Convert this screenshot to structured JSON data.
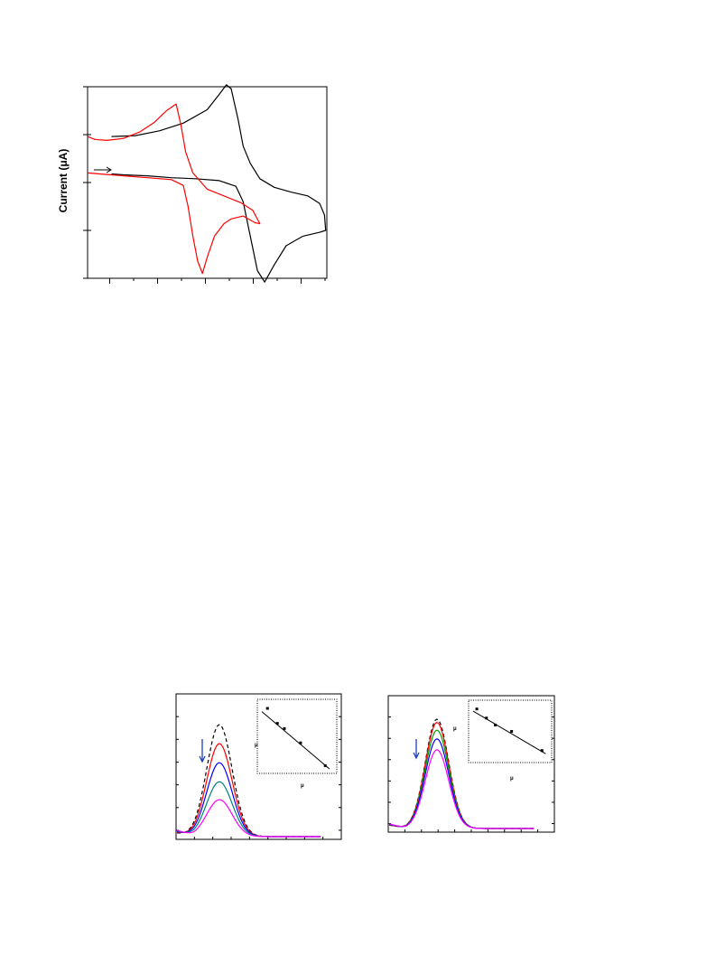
{
  "chart_data": [
    {
      "type": "line",
      "ylabel": "Current (μA)",
      "xlim": [
        0,
        100
      ],
      "ylim": [
        -10,
        10
      ],
      "annotation_arrow_direction": "right",
      "series": [
        {
          "color": "#000000",
          "points": [
            [
              10,
              4.8
            ],
            [
              20,
              4.9
            ],
            [
              30,
              5.4
            ],
            [
              40,
              6.2
            ],
            [
              50,
              7.6
            ],
            [
              55,
              9.2
            ],
            [
              58,
              10.2
            ],
            [
              60,
              9.8
            ],
            [
              63,
              6.5
            ],
            [
              65,
              3.8
            ],
            [
              68,
              2.0
            ],
            [
              72,
              0.4
            ],
            [
              78,
              -0.5
            ],
            [
              85,
              -1.0
            ],
            [
              92,
              -1.4
            ],
            [
              97,
              -2.2
            ],
            [
              99,
              -3.4
            ],
            [
              99.5,
              -5.0
            ],
            [
              97,
              -5.2
            ],
            [
              90,
              -5.6
            ],
            [
              83,
              -6.6
            ],
            [
              78,
              -8.6
            ],
            [
              74,
              -10.4
            ],
            [
              71,
              -9.2
            ],
            [
              68,
              -5.6
            ],
            [
              65,
              -2.0
            ],
            [
              62,
              -0.4
            ],
            [
              55,
              0.2
            ],
            [
              45,
              0.4
            ],
            [
              35,
              0.5
            ],
            [
              25,
              0.7
            ],
            [
              15,
              0.8
            ],
            [
              10,
              0.9
            ]
          ]
        },
        {
          "color": "#ff0000",
          "points": [
            [
              0,
              4.8
            ],
            [
              3,
              4.5
            ],
            [
              8,
              4.4
            ],
            [
              15,
              4.6
            ],
            [
              22,
              5.3
            ],
            [
              28,
              6.3
            ],
            [
              33,
              7.5
            ],
            [
              37,
              8.2
            ],
            [
              39,
              6.0
            ],
            [
              41,
              3.2
            ],
            [
              44,
              1.0
            ],
            [
              50,
              -0.7
            ],
            [
              57,
              -1.4
            ],
            [
              64,
              -2.1
            ],
            [
              69,
              -2.9
            ],
            [
              72,
              -4.3
            ],
            [
              70,
              -4.2
            ],
            [
              65,
              -3.5
            ],
            [
              60,
              -3.8
            ],
            [
              57,
              -4.3
            ],
            [
              53,
              -5.6
            ],
            [
              50,
              -7.8
            ],
            [
              48,
              -9.5
            ],
            [
              46,
              -8.2
            ],
            [
              44,
              -5.6
            ],
            [
              42,
              -2.5
            ],
            [
              40,
              -0.3
            ],
            [
              35,
              0.3
            ],
            [
              25,
              0.5
            ],
            [
              15,
              0.7
            ],
            [
              5,
              0.9
            ],
            [
              0,
              1.0
            ]
          ]
        }
      ]
    },
    {
      "type": "line",
      "annotation_arrow_direction": "down",
      "series": [
        {
          "color": "#000000",
          "style": "dashed",
          "peak": 1.0
        },
        {
          "color": "#ff0000",
          "style": "solid",
          "peak": 0.83
        },
        {
          "color": "#0000ff",
          "style": "solid",
          "peak": 0.66
        },
        {
          "color": "#008080",
          "style": "solid",
          "peak": 0.49
        },
        {
          "color": "#ff00ff",
          "style": "solid",
          "peak": 0.33
        }
      ],
      "inset": {
        "type": "scatter",
        "points": [
          [
            0.08,
            0.93
          ],
          [
            0.22,
            0.7
          ],
          [
            0.32,
            0.62
          ],
          [
            0.55,
            0.4
          ],
          [
            0.9,
            0.05
          ]
        ],
        "fit_line": [
          [
            0.0,
            0.88
          ],
          [
            0.96,
            0.0
          ]
        ],
        "label_mu_1": "μ",
        "label_mu_2": "μ"
      }
    },
    {
      "type": "line",
      "series": [
        {
          "color": "#000000",
          "style": "dashed",
          "peak": 1.0
        },
        {
          "color": "#ff0000",
          "style": "solid",
          "peak": 0.97
        },
        {
          "color": "#00a000",
          "style": "solid",
          "peak": 0.9
        },
        {
          "color": "#0000ff",
          "style": "solid",
          "peak": 0.82
        },
        {
          "color": "#ff00ff",
          "style": "solid",
          "peak": 0.72
        }
      ],
      "annotation_arrow_direction": "down",
      "inset": {
        "type": "scatter",
        "points": [
          [
            0.05,
            0.92
          ],
          [
            0.18,
            0.75
          ],
          [
            0.3,
            0.62
          ],
          [
            0.52,
            0.5
          ],
          [
            0.93,
            0.14
          ]
        ],
        "fit_line": [
          [
            0.0,
            0.88
          ],
          [
            0.98,
            0.08
          ]
        ],
        "label_mu_1": "μ",
        "label_mu_2": "μ"
      }
    }
  ]
}
